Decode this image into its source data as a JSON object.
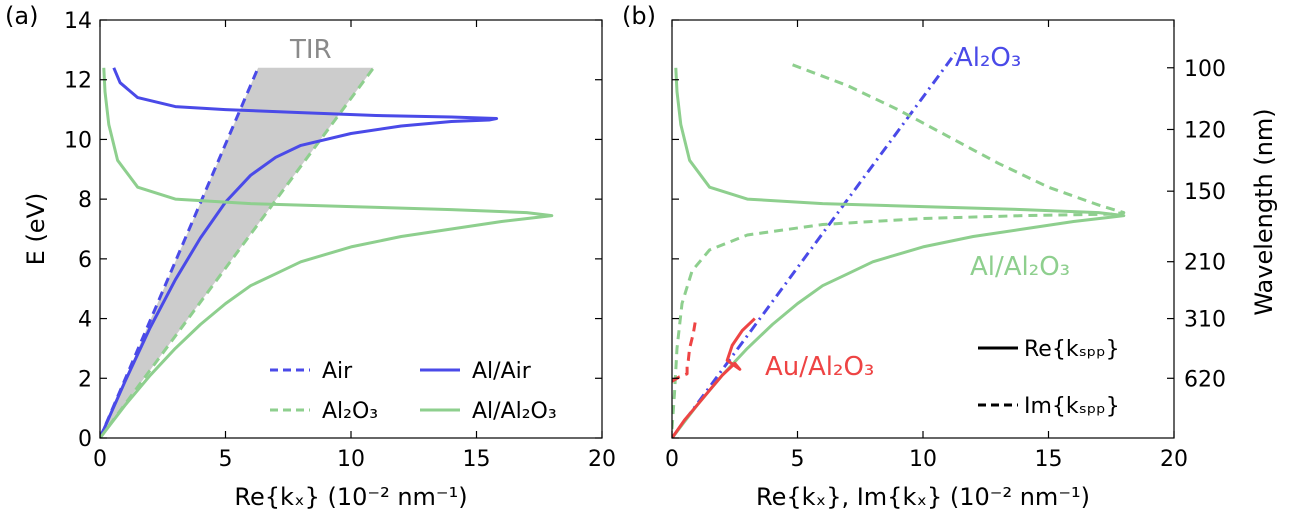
{
  "figure": {
    "panels": [
      {
        "tag": "(a)",
        "xlabel": "Re{kₓ} (10⁻² nm⁻¹)",
        "ylabel": "E (eV)",
        "xticks": [
          "0",
          "5",
          "10",
          "15",
          "20"
        ],
        "yticks": [
          "0",
          "2",
          "4",
          "6",
          "8",
          "10",
          "12",
          "14"
        ],
        "region_label": "TIR",
        "legend": [
          {
            "label": "Air",
            "style": "dashed",
            "color": "#4a4ae8"
          },
          {
            "label": "Al/Air",
            "style": "solid",
            "color": "#4a4ae8"
          },
          {
            "label": "Al₂O₃",
            "style": "dashed",
            "color": "#8ecf8e"
          },
          {
            "label": "Al/Al₂O₃",
            "style": "solid",
            "color": "#8ecf8e"
          }
        ]
      },
      {
        "tag": "(b)",
        "xlabel": "Re{kₓ}, Im{kₓ} (10⁻² nm⁻¹)",
        "ylabel_right": "Wavelength (nm)",
        "xticks": [
          "0",
          "5",
          "10",
          "15",
          "20"
        ],
        "yticks_right": [
          "100",
          "120",
          "150",
          "210",
          "310",
          "620"
        ],
        "annotations": [
          {
            "text": "Al₂O₃",
            "color": "#4a4ae8"
          },
          {
            "text": "Al/Al₂O₃",
            "color": "#8ecf8e"
          },
          {
            "text": "Au/Al₂O₃",
            "color": "#ee4444"
          }
        ],
        "legend": [
          {
            "label": "Re{kₛₚₚ}",
            "style": "solid",
            "color": "#000000"
          },
          {
            "label": "Im{kₛₚₚ}",
            "style": "dashed",
            "color": "#000000"
          }
        ]
      }
    ]
  },
  "chart_data": [
    {
      "type": "line",
      "panel": "(a)",
      "xlabel": "Re{kₓ} (10⁻² nm⁻¹)",
      "ylabel": "E (eV)",
      "xlim": [
        0,
        20
      ],
      "ylim": [
        0,
        14
      ],
      "grid": false,
      "legend_position": "bottom-right",
      "shaded_region": {
        "label": "TIR",
        "color": "#cccccc",
        "upper_line": [
          [
            0,
            0
          ],
          [
            6.3,
            12.4
          ]
        ],
        "lower_line": [
          [
            0,
            0
          ],
          [
            10.9,
            12.4
          ]
        ]
      },
      "series": [
        {
          "name": "Air",
          "style": "dashed",
          "color": "#4a4ae8",
          "points": [
            [
              0,
              0
            ],
            [
              6.3,
              12.4
            ]
          ]
        },
        {
          "name": "Al₂O₃",
          "style": "dashed",
          "color": "#8ecf8e",
          "points": [
            [
              0,
              0
            ],
            [
              10.9,
              12.4
            ]
          ]
        },
        {
          "name": "Al/Air",
          "style": "solid",
          "color": "#4a4ae8",
          "points": [
            [
              0,
              0
            ],
            [
              1.0,
              1.9
            ],
            [
              2.0,
              3.7
            ],
            [
              3.0,
              5.3
            ],
            [
              4.0,
              6.7
            ],
            [
              5.0,
              7.9
            ],
            [
              6.0,
              8.8
            ],
            [
              7.0,
              9.4
            ],
            [
              8.0,
              9.8
            ],
            [
              10.0,
              10.2
            ],
            [
              12.0,
              10.45
            ],
            [
              14.0,
              10.6
            ],
            [
              15.5,
              10.65
            ],
            [
              15.8,
              10.7
            ],
            [
              14.0,
              10.75
            ],
            [
              11.0,
              10.8
            ],
            [
              8.0,
              10.9
            ],
            [
              5.0,
              11.0
            ],
            [
              3.0,
              11.1
            ],
            [
              1.5,
              11.4
            ],
            [
              0.8,
              11.9
            ],
            [
              0.55,
              12.4
            ]
          ]
        },
        {
          "name": "Al/Al₂O₃",
          "style": "solid",
          "color": "#8ecf8e",
          "points": [
            [
              0,
              0
            ],
            [
              1.0,
              1.1
            ],
            [
              2.0,
              2.1
            ],
            [
              3.0,
              3.0
            ],
            [
              4.0,
              3.8
            ],
            [
              5.0,
              4.5
            ],
            [
              6.0,
              5.1
            ],
            [
              7.0,
              5.5
            ],
            [
              8.0,
              5.9
            ],
            [
              10.0,
              6.4
            ],
            [
              12.0,
              6.75
            ],
            [
              14.0,
              7.0
            ],
            [
              16.0,
              7.25
            ],
            [
              17.5,
              7.4
            ],
            [
              18.0,
              7.45
            ],
            [
              17.0,
              7.55
            ],
            [
              14.0,
              7.65
            ],
            [
              10.0,
              7.75
            ],
            [
              6.0,
              7.85
            ],
            [
              3.0,
              8.0
            ],
            [
              1.5,
              8.4
            ],
            [
              0.7,
              9.3
            ],
            [
              0.35,
              10.5
            ],
            [
              0.2,
              11.6
            ],
            [
              0.15,
              12.4
            ]
          ]
        }
      ]
    },
    {
      "type": "line",
      "panel": "(b)",
      "xlabel": "Re{kₓ}, Im{kₓ} (10⁻² nm⁻¹)",
      "ylabel": "Wavelength (nm)",
      "xlim": [
        0,
        20
      ],
      "ylim": [
        0,
        14
      ],
      "right_ticks_nm": [
        100,
        120,
        150,
        210,
        310,
        620
      ],
      "grid": false,
      "legend_position": "bottom-right",
      "series": [
        {
          "name": "Al₂O₃",
          "style": "dashdot",
          "color": "#4a4ae8",
          "points": [
            [
              0,
              0
            ],
            [
              11.3,
              12.9
            ]
          ]
        },
        {
          "name": "Al/Al₂O₃ Re",
          "style": "solid",
          "color": "#8ecf8e",
          "points": [
            [
              0,
              0
            ],
            [
              1.0,
              1.1
            ],
            [
              2.0,
              2.1
            ],
            [
              3.0,
              3.0
            ],
            [
              4.0,
              3.8
            ],
            [
              5.0,
              4.5
            ],
            [
              6.0,
              5.1
            ],
            [
              7.0,
              5.5
            ],
            [
              8.0,
              5.9
            ],
            [
              10.0,
              6.4
            ],
            [
              12.0,
              6.75
            ],
            [
              14.0,
              7.0
            ],
            [
              16.0,
              7.25
            ],
            [
              17.5,
              7.4
            ],
            [
              18.0,
              7.45
            ],
            [
              17.0,
              7.55
            ],
            [
              14.0,
              7.65
            ],
            [
              10.0,
              7.75
            ],
            [
              6.0,
              7.85
            ],
            [
              3.0,
              8.0
            ],
            [
              1.5,
              8.4
            ],
            [
              0.7,
              9.3
            ],
            [
              0.35,
              10.5
            ],
            [
              0.2,
              11.6
            ],
            [
              0.15,
              12.4
            ]
          ]
        },
        {
          "name": "Al/Al₂O₃ Im",
          "style": "dashed",
          "color": "#8ecf8e",
          "points": [
            [
              0,
              0.3
            ],
            [
              0.1,
              1.5
            ],
            [
              0.2,
              3.0
            ],
            [
              0.4,
              4.5
            ],
            [
              0.8,
              5.6
            ],
            [
              1.5,
              6.3
            ],
            [
              3.0,
              6.8
            ],
            [
              6.0,
              7.15
            ],
            [
              10.0,
              7.35
            ],
            [
              14.0,
              7.45
            ],
            [
              17.5,
              7.5
            ],
            [
              18.0,
              7.55
            ],
            [
              17.0,
              7.8
            ],
            [
              15.0,
              8.4
            ],
            [
              13.0,
              9.2
            ],
            [
              11.0,
              10.1
            ],
            [
              9.0,
              11.0
            ],
            [
              7.0,
              11.8
            ],
            [
              4.8,
              12.5
            ]
          ]
        },
        {
          "name": "Au/Al₂O₃ Re",
          "style": "solid",
          "color": "#ee4444",
          "points": [
            [
              0,
              0
            ],
            [
              0.5,
              0.6
            ],
            [
              1.0,
              1.1
            ],
            [
              1.5,
              1.6
            ],
            [
              2.0,
              2.1
            ],
            [
              2.5,
              2.5
            ],
            [
              2.7,
              2.3
            ],
            [
              2.2,
              2.6
            ],
            [
              2.4,
              3.1
            ],
            [
              2.8,
              3.6
            ],
            [
              3.3,
              4.0
            ]
          ]
        },
        {
          "name": "Au/Al₂O₃ Im",
          "style": "dashed",
          "color": "#ee4444",
          "points": [
            [
              0,
              1.9
            ],
            [
              0.3,
              2.05
            ],
            [
              0.6,
              2.15
            ],
            [
              0.6,
              2.4
            ],
            [
              0.65,
              2.6
            ],
            [
              0.7,
              3.0
            ],
            [
              0.85,
              3.5
            ],
            [
              0.95,
              4.0
            ]
          ]
        }
      ]
    }
  ]
}
